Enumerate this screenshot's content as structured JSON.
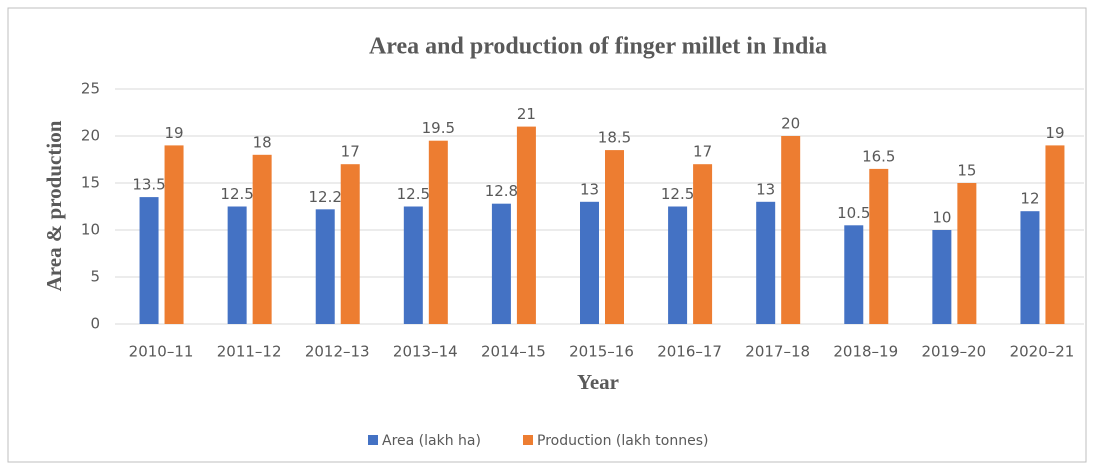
{
  "chart_data": {
    "type": "bar",
    "title": "Area and production of finger millet in India",
    "x_label": "Year",
    "y_label": "Area & production",
    "categories": [
      "2010–11",
      "2011–12",
      "2012–13",
      "2013–14",
      "2014–15",
      "2015–16",
      "2016–17",
      "2017–18",
      "2018–19",
      "2019–20",
      "2020–21"
    ],
    "series": [
      {
        "name": "Area (lakh ha)",
        "color": "#4472c4",
        "values": [
          13.5,
          12.5,
          12.2,
          12.5,
          12.8,
          13,
          12.5,
          13,
          10.5,
          10,
          12
        ]
      },
      {
        "name": "Production (lakh tonnes)",
        "color": "#ed7d31",
        "values": [
          19,
          18,
          17,
          19.5,
          21,
          18.5,
          17,
          20,
          16.5,
          15,
          19
        ]
      }
    ],
    "ylim": [
      0,
      25
    ],
    "yticks": [
      0,
      5,
      10,
      15,
      20,
      25
    ],
    "grid": true,
    "legend": "bottom"
  }
}
